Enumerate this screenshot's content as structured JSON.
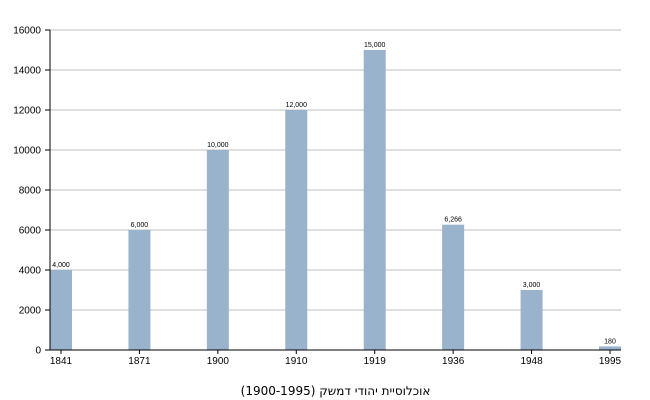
{
  "chart_data": {
    "type": "bar",
    "xlabel": "אוכלוסיית יהודי דמשק (1900-1995)",
    "ylabel": "",
    "categories": [
      "1841",
      "1871",
      "1900",
      "1910",
      "1919",
      "1936",
      "1948",
      "1995"
    ],
    "values": [
      4000,
      6000,
      10000,
      12000,
      15000,
      6266,
      3000,
      180
    ],
    "data_labels": [
      "4,000",
      "6,000",
      "10,000",
      "12,000",
      "15,000",
      "6,266",
      "3,000",
      "180"
    ],
    "ylim": [
      0,
      16000
    ],
    "yticks": [
      0,
      2000,
      4000,
      6000,
      8000,
      10000,
      12000,
      14000,
      16000
    ],
    "grid": true,
    "bar_color": "#9ab3cc",
    "grid_color": "#bfbfbf"
  }
}
